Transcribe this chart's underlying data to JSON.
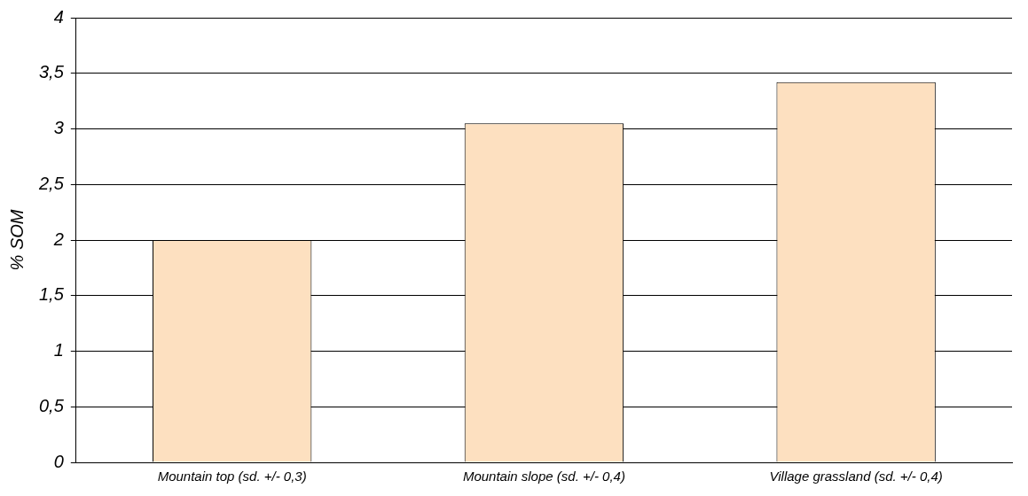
{
  "chart_data": {
    "type": "bar",
    "ylabel": "% SOM",
    "categories": [
      "Mountain top (sd. +/- 0,3)",
      "Mountain slope (sd. +/- 0,4)",
      "Village grassland (sd. +/- 0,4)"
    ],
    "values": [
      2.0,
      3.05,
      3.42
    ],
    "color": "#fde0c0",
    "ylim": [
      0,
      4
    ],
    "yticks": [
      {
        "value": 0,
        "label": "0"
      },
      {
        "value": 0.5,
        "label": "0,5"
      },
      {
        "value": 1,
        "label": "1"
      },
      {
        "value": 1.5,
        "label": "1,5"
      },
      {
        "value": 2,
        "label": "2"
      },
      {
        "value": 2.5,
        "label": "2,5"
      },
      {
        "value": 3,
        "label": "3"
      },
      {
        "value": 3.5,
        "label": "3,5"
      },
      {
        "value": 4,
        "label": "4"
      }
    ],
    "grid": "y",
    "legend": false
  }
}
